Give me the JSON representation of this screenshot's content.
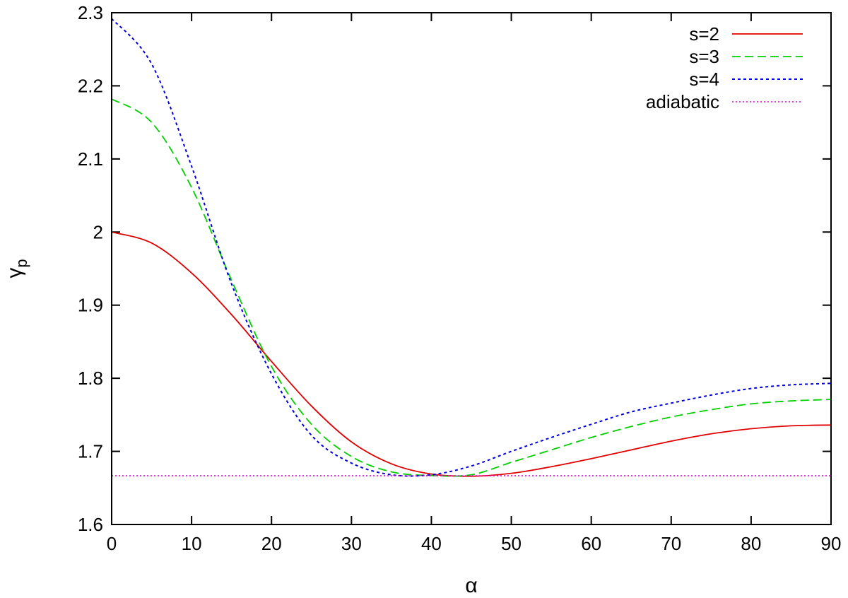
{
  "chart_data": {
    "type": "line",
    "title": "",
    "xlabel": "α",
    "ylabel": "γ",
    "ylabel_subscript": "p",
    "xlim": [
      0,
      90
    ],
    "ylim": [
      1.6,
      2.3
    ],
    "x_ticks": [
      0,
      10,
      20,
      30,
      40,
      50,
      60,
      70,
      80,
      90
    ],
    "x_tick_labels": [
      "0",
      "10",
      "20",
      "30",
      "40",
      "50",
      "60",
      "70",
      "80",
      "90"
    ],
    "y_ticks": [
      1.6,
      1.7,
      1.8,
      1.9,
      2.0,
      2.1,
      2.2,
      2.3
    ],
    "y_tick_labels": [
      "1.6",
      "1.7",
      "1.8",
      "1.9",
      "2",
      "2.1",
      "2.2",
      "2.3"
    ],
    "grid": false,
    "legend_position": "top-right",
    "series": [
      {
        "name": "s=2",
        "color": "#e00000",
        "dash": "solid",
        "x": [
          0,
          5,
          10,
          15,
          20,
          25,
          30,
          35,
          40,
          45,
          50,
          55,
          60,
          65,
          70,
          75,
          80,
          85,
          90
        ],
        "y": [
          2.0,
          1.985,
          1.944,
          1.887,
          1.823,
          1.762,
          1.713,
          1.683,
          1.669,
          1.666,
          1.67,
          1.679,
          1.69,
          1.702,
          1.714,
          1.724,
          1.731,
          1.735,
          1.736
        ]
      },
      {
        "name": "s=3",
        "color": "#00d000",
        "dash": "dashed",
        "x": [
          0,
          5,
          10,
          15,
          20,
          25,
          30,
          35,
          40,
          45,
          50,
          55,
          60,
          65,
          70,
          75,
          80,
          85,
          90
        ],
        "y": [
          2.182,
          2.15,
          2.061,
          1.934,
          1.816,
          1.737,
          1.693,
          1.672,
          1.667,
          1.668,
          1.685,
          1.702,
          1.719,
          1.734,
          1.747,
          1.757,
          1.765,
          1.769,
          1.771
        ]
      },
      {
        "name": "s=4",
        "color": "#0000e0",
        "dash": "dotted",
        "x": [
          0,
          5,
          10,
          15,
          20,
          25,
          30,
          35,
          40,
          45,
          50,
          55,
          60,
          65,
          70,
          75,
          80,
          85,
          90
        ],
        "y": [
          2.292,
          2.23,
          2.09,
          1.929,
          1.806,
          1.722,
          1.684,
          1.668,
          1.668,
          1.68,
          1.7,
          1.719,
          1.737,
          1.754,
          1.766,
          1.777,
          1.786,
          1.791,
          1.793
        ]
      },
      {
        "name": "adiabatic",
        "color": "#e000e0",
        "dash": "fine-dotted",
        "x": [
          0,
          90
        ],
        "y": [
          1.6667,
          1.6667
        ]
      }
    ]
  }
}
